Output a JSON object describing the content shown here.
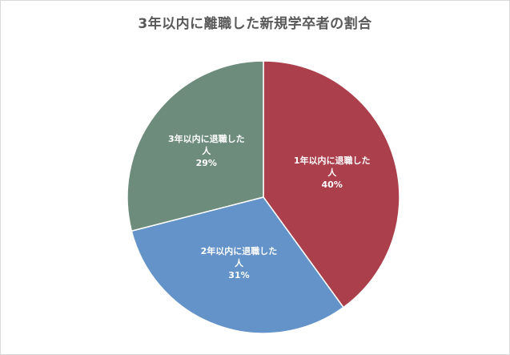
{
  "chart_data": {
    "type": "pie",
    "title": "3年以内に離職した新規学卒者の割合",
    "slices": [
      {
        "label_line1": "1年以内に退職した",
        "label_line2": "人",
        "percent_label": "40%",
        "value": 40,
        "color": "#ab3f4c"
      },
      {
        "label_line1": "2年以内に退職した",
        "label_line2": "人",
        "percent_label": "31%",
        "value": 31,
        "color": "#6393c8"
      },
      {
        "label_line1": "3年以内に退職した",
        "label_line2": "人",
        "percent_label": "29%",
        "value": 29,
        "color": "#6d8c7c"
      }
    ],
    "legend": "none",
    "start_angle": "12 o'clock",
    "direction": "clockwise"
  }
}
